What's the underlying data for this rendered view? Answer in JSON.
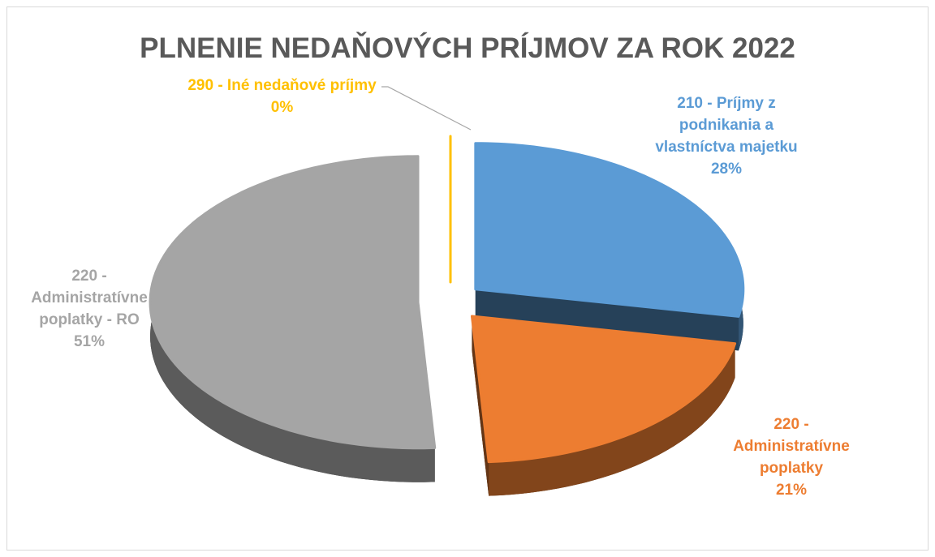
{
  "chart_data": {
    "type": "pie3d",
    "title": "PLNENIE NEDAŇOVÝCH PRÍJMOV ZA ROK 2022",
    "categories": [
      "210 - Príjmy z podnikania a vlastníctva majetku",
      "220 - Administratívne poplatky",
      "220 - Administratívne poplatky - RO",
      "290 - Iné nedaňové príjmy"
    ],
    "values": [
      28,
      21,
      51,
      0
    ],
    "value_labels": [
      "28%",
      "21%",
      "51%",
      "0%"
    ],
    "colors": [
      "#5b9bd5",
      "#ed7d31",
      "#a5a5a5",
      "#ffc000"
    ]
  }
}
